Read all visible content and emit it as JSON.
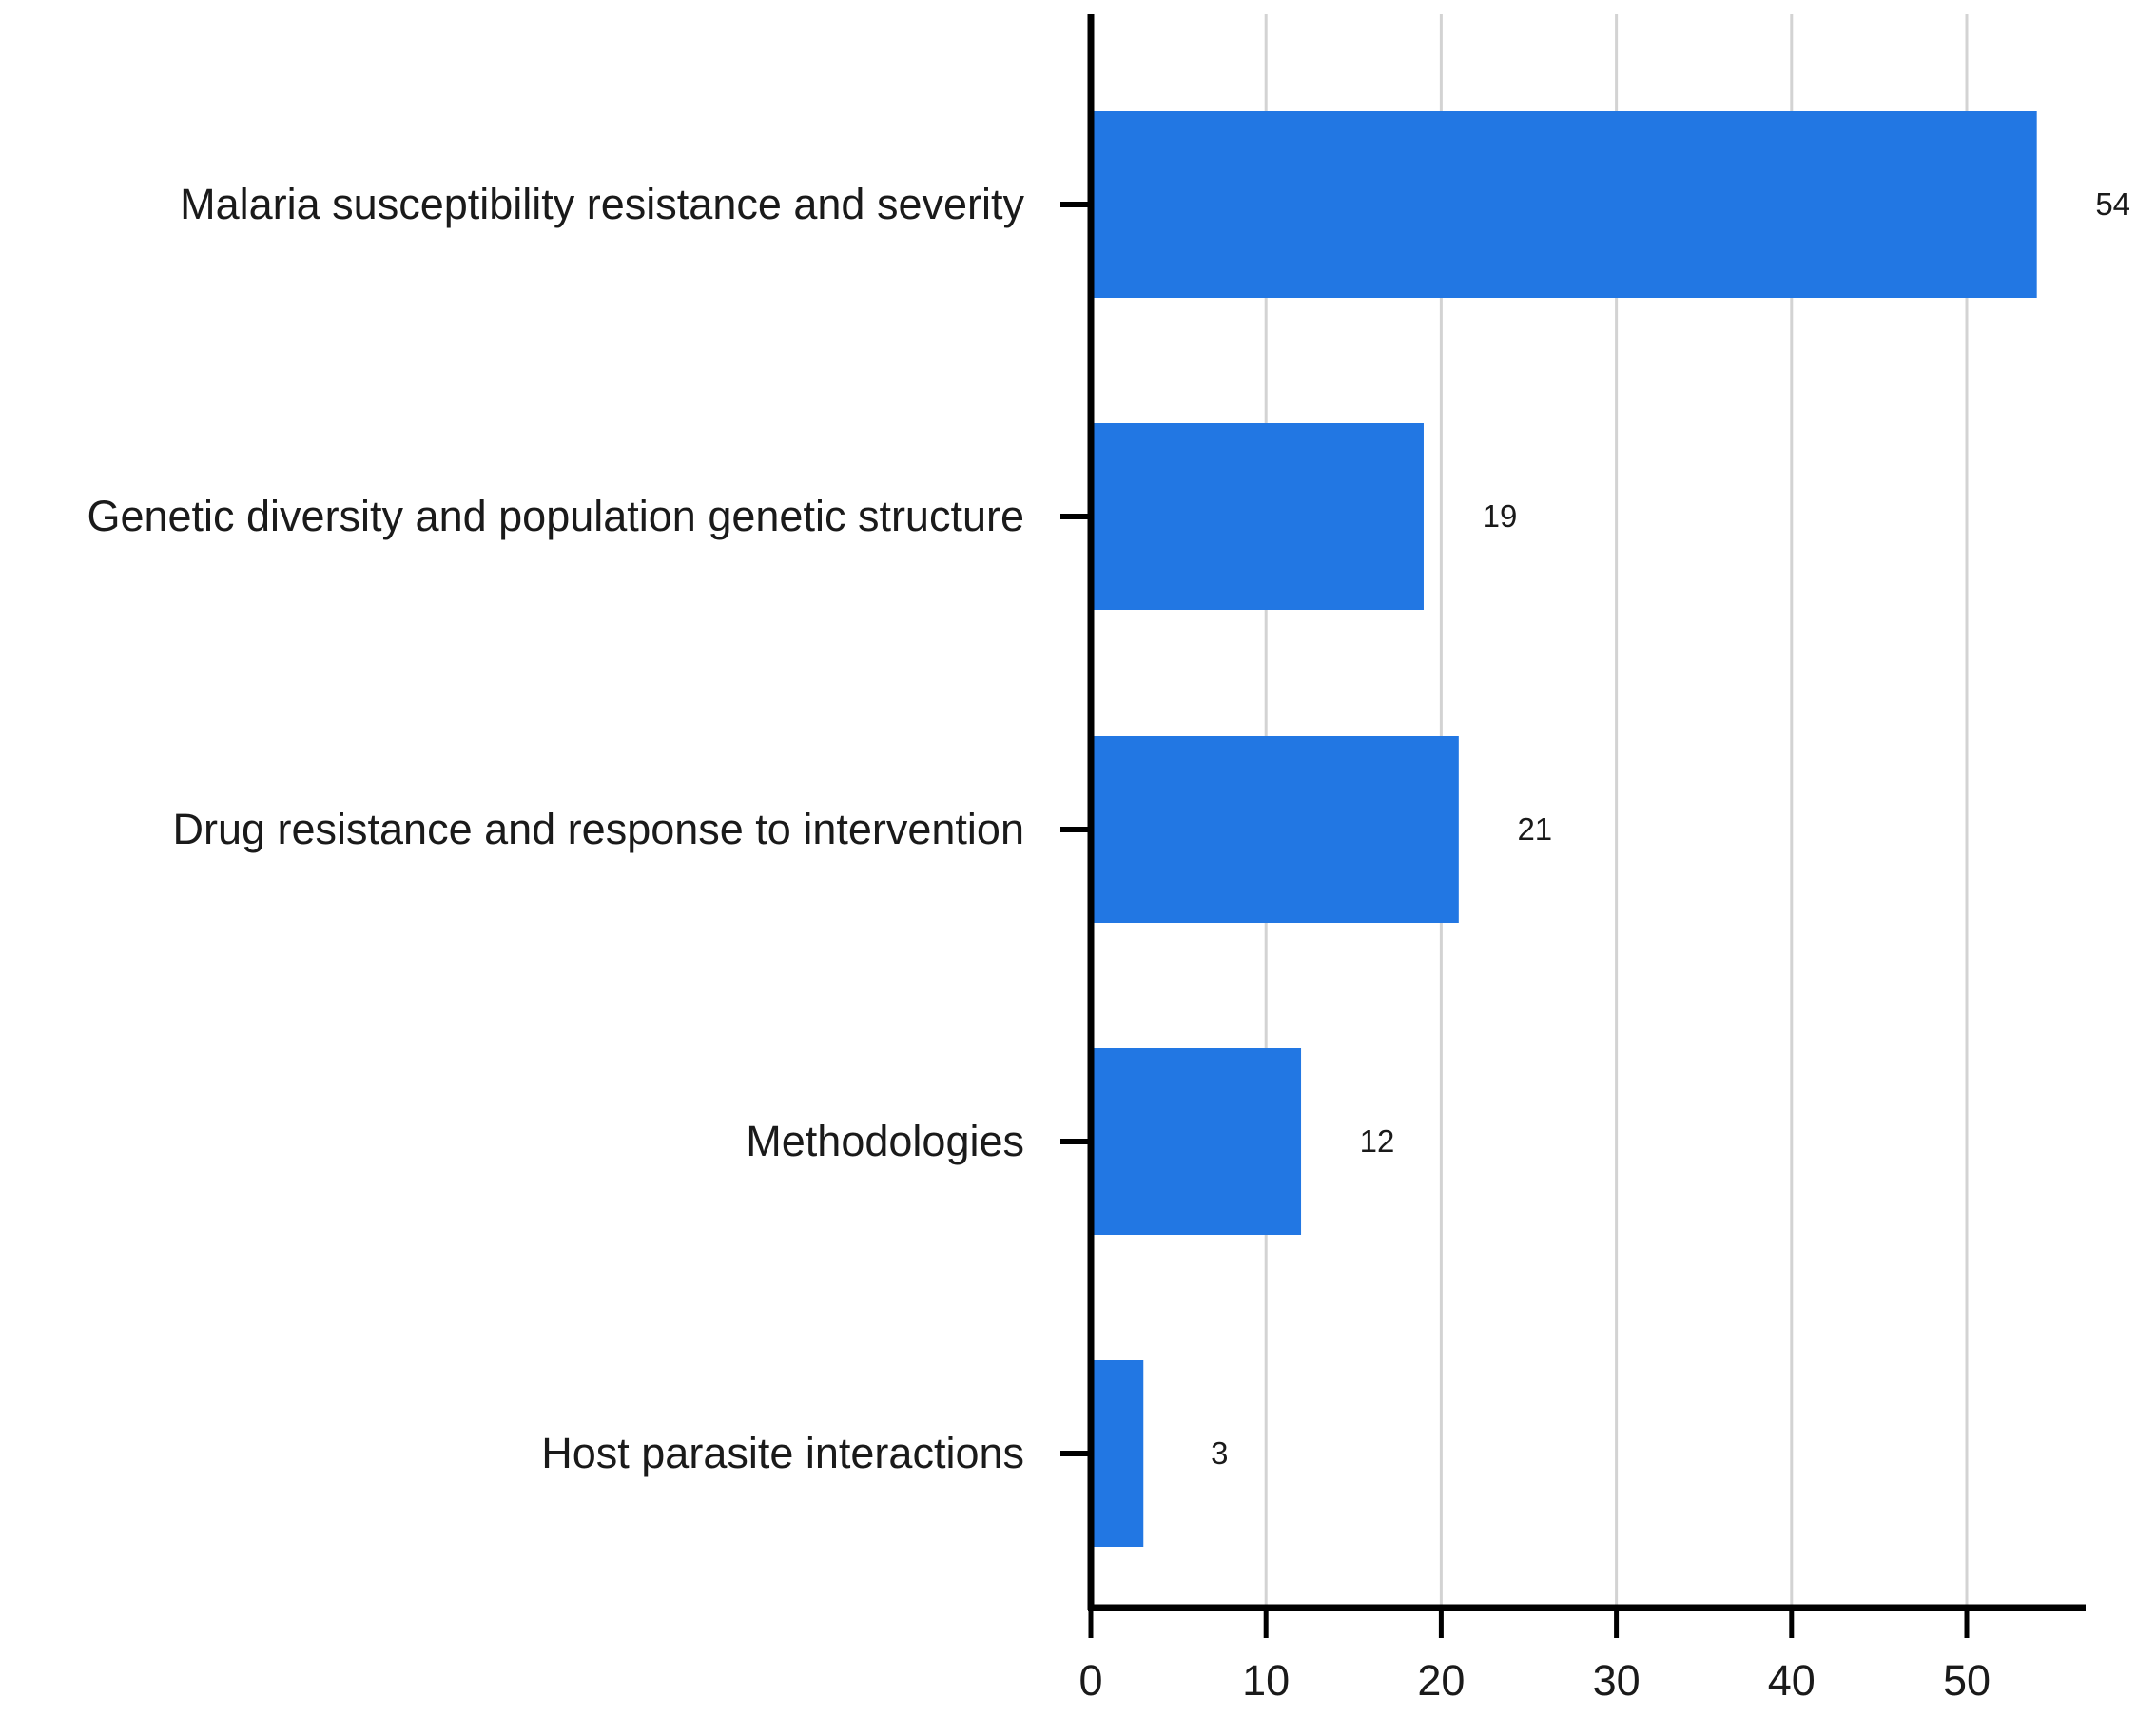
{
  "chart_data": {
    "type": "bar",
    "orientation": "horizontal",
    "categories": [
      "Malaria susceptibility resistance and severity",
      "Genetic diversity and population genetic structure",
      "Drug resistance and response to intervention",
      "Methodologies",
      "Host parasite interactions"
    ],
    "values": [
      54,
      19,
      21,
      12,
      3
    ],
    "data_labels": [
      "54",
      "19",
      "21",
      "12",
      "3"
    ],
    "x_ticks": [
      "0",
      "10",
      "20",
      "30",
      "40",
      "50"
    ],
    "xlim": [
      0,
      57
    ],
    "title": "",
    "xlabel": "",
    "ylabel": "",
    "grid": "vertical",
    "legend": "none",
    "colors": {
      "bar": "#2277e3",
      "grid": "#d3d3d3",
      "axis": "#000000",
      "text": "#1a1a1a"
    }
  }
}
